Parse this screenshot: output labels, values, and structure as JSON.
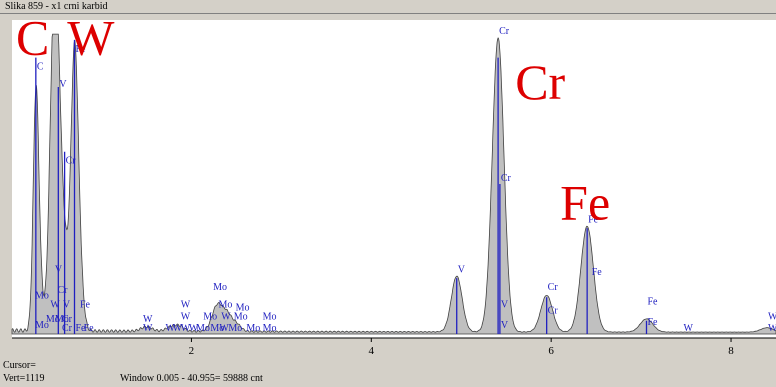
{
  "window": {
    "title": "Slika 859 - x1 crni karbid"
  },
  "status": {
    "cursor": "Cursor=",
    "vert": "Vert=1119",
    "window_range": "Window 0.005 - 40.955=  59888 cnt"
  },
  "colors": {
    "background": "#ffffff",
    "fill": "#c0c0c0",
    "marker": "#2020c0",
    "element_label": "#dd0000",
    "frame": "#d4d0c8"
  },
  "chart_data": {
    "type": "area",
    "title": "",
    "xlabel": "",
    "ylabel": "",
    "xlim": [
      0.005,
      8.5
    ],
    "ylim": [
      0,
      100
    ],
    "xticks": [
      2,
      4,
      6,
      8
    ],
    "grid": false,
    "peaks": [
      {
        "x": 0.27,
        "y": 68,
        "w": 0.03
      },
      {
        "x": 0.3,
        "y": 20,
        "w": 0.04
      },
      {
        "x": 0.47,
        "y": 100,
        "w": 0.045
      },
      {
        "x": 0.52,
        "y": 35,
        "w": 0.04
      },
      {
        "x": 0.58,
        "y": 28,
        "w": 0.05
      },
      {
        "x": 0.7,
        "y": 92,
        "w": 0.04
      },
      {
        "x": 0.76,
        "y": 15,
        "w": 0.04
      },
      {
        "x": 1.5,
        "y": 1.5,
        "w": 0.06
      },
      {
        "x": 1.78,
        "y": 1.5,
        "w": 0.06
      },
      {
        "x": 1.87,
        "y": 1.5,
        "w": 0.05
      },
      {
        "x": 2.29,
        "y": 9,
        "w": 0.06
      },
      {
        "x": 2.4,
        "y": 5,
        "w": 0.05
      },
      {
        "x": 2.5,
        "y": 2.5,
        "w": 0.05
      },
      {
        "x": 4.95,
        "y": 19,
        "w": 0.06
      },
      {
        "x": 5.41,
        "y": 100,
        "w": 0.065
      },
      {
        "x": 5.95,
        "y": 12.5,
        "w": 0.065
      },
      {
        "x": 6.4,
        "y": 36,
        "w": 0.07
      },
      {
        "x": 7.06,
        "y": 4.5,
        "w": 0.07
      },
      {
        "x": 8.4,
        "y": 1.5,
        "w": 0.07
      }
    ],
    "markers": [
      {
        "x": 0.27,
        "h": 94
      },
      {
        "x": 0.52,
        "h": 84
      },
      {
        "x": 0.59,
        "h": 62
      },
      {
        "x": 0.7,
        "h": 100
      },
      {
        "x": 5.41,
        "h": 94
      },
      {
        "x": 5.43,
        "h": 51
      },
      {
        "x": 6.4,
        "h": 36
      },
      {
        "x": 4.95,
        "h": 19
      },
      {
        "x": 5.95,
        "h": 12.5
      },
      {
        "x": 7.06,
        "h": 4.5
      }
    ],
    "line_labels": [
      {
        "text": "C",
        "x": 0.27,
        "h": 90
      },
      {
        "text": "V",
        "x": 0.52,
        "h": 84
      },
      {
        "text": "Cr",
        "x": 0.59,
        "h": 58
      },
      {
        "text": "Fe",
        "x": 0.7,
        "h": 96
      },
      {
        "text": "V",
        "x": 0.47,
        "h": 21
      },
      {
        "text": "Cr",
        "x": 0.5,
        "h": 14
      },
      {
        "text": "Mo",
        "x": 0.25,
        "h": 12
      },
      {
        "text": "Mo",
        "x": 0.25,
        "h": 2
      },
      {
        "text": "W",
        "x": 0.42,
        "h": 9
      },
      {
        "text": "V",
        "x": 0.56,
        "h": 9
      },
      {
        "text": "Fe",
        "x": 0.75,
        "h": 9
      },
      {
        "text": "Mo",
        "x": 0.37,
        "h": 4
      },
      {
        "text": "Mo",
        "x": 0.47,
        "h": 4
      },
      {
        "text": "Cr",
        "x": 0.55,
        "h": 4
      },
      {
        "text": "Cr",
        "x": 0.55,
        "h": 1
      },
      {
        "text": "Fe",
        "x": 0.7,
        "h": 1
      },
      {
        "text": "Fe",
        "x": 0.79,
        "h": 1
      },
      {
        "text": "W",
        "x": 1.45,
        "h": 4
      },
      {
        "text": "W",
        "x": 1.45,
        "h": 1
      },
      {
        "text": "W",
        "x": 1.7,
        "h": 1
      },
      {
        "text": "W",
        "x": 1.78,
        "h": 1
      },
      {
        "text": "W",
        "x": 1.87,
        "h": 1
      },
      {
        "text": "W",
        "x": 1.87,
        "h": 9
      },
      {
        "text": "W",
        "x": 1.87,
        "h": 5
      },
      {
        "text": "Mo",
        "x": 2.12,
        "h": 5
      },
      {
        "text": "Mo",
        "x": 2.23,
        "h": 15
      },
      {
        "text": "Mo",
        "x": 2.29,
        "h": 9
      },
      {
        "text": "Mo",
        "x": 2.48,
        "h": 8
      },
      {
        "text": "W",
        "x": 2.32,
        "h": 5
      },
      {
        "text": "Mo",
        "x": 2.46,
        "h": 5
      },
      {
        "text": "Mo",
        "x": 2.78,
        "h": 5
      },
      {
        "text": "W",
        "x": 1.96,
        "h": 1
      },
      {
        "text": "Mo",
        "x": 2.04,
        "h": 1
      },
      {
        "text": "Mo",
        "x": 2.2,
        "h": 1
      },
      {
        "text": "W",
        "x": 2.3,
        "h": 1
      },
      {
        "text": "Mo",
        "x": 2.4,
        "h": 1
      },
      {
        "text": "Mo",
        "x": 2.6,
        "h": 1
      },
      {
        "text": "Mo",
        "x": 2.78,
        "h": 1
      },
      {
        "text": "V",
        "x": 4.95,
        "h": 21
      },
      {
        "text": "Cr",
        "x": 5.41,
        "h": 102
      },
      {
        "text": "Cr",
        "x": 5.43,
        "h": 52
      },
      {
        "text": "V",
        "x": 5.43,
        "h": 9
      },
      {
        "text": "V",
        "x": 5.43,
        "h": 2
      },
      {
        "text": "Cr",
        "x": 5.95,
        "h": 15
      },
      {
        "text": "Cr",
        "x": 5.95,
        "h": 7
      },
      {
        "text": "Fe",
        "x": 6.4,
        "h": 38
      },
      {
        "text": "Fe",
        "x": 6.44,
        "h": 20
      },
      {
        "text": "Fe",
        "x": 7.06,
        "h": 10
      },
      {
        "text": "Fe",
        "x": 7.06,
        "h": 3
      },
      {
        "text": "W",
        "x": 7.46,
        "h": 1
      },
      {
        "text": "W",
        "x": 8.4,
        "h": 5
      },
      {
        "text": "W",
        "x": 8.4,
        "h": 1
      }
    ],
    "element_annotations": [
      {
        "text": "C",
        "x": 0.05,
        "h": 95
      },
      {
        "text": "W",
        "x": 0.62,
        "h": 95
      },
      {
        "text": "Cr",
        "x": 5.6,
        "h": 80
      },
      {
        "text": "Fe",
        "x": 6.1,
        "h": 39
      }
    ]
  }
}
